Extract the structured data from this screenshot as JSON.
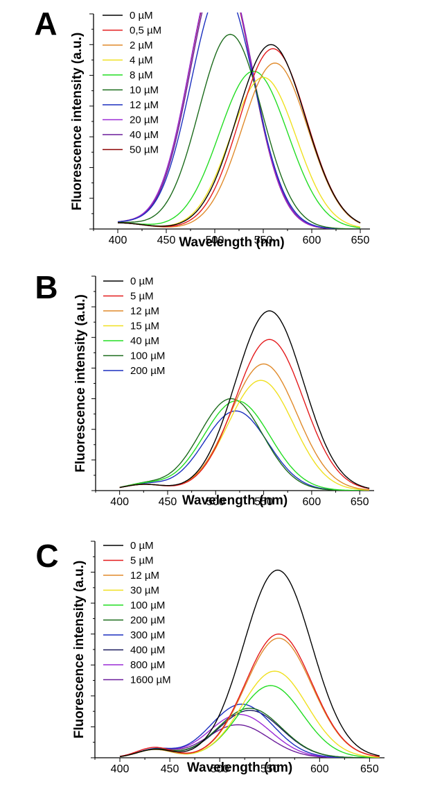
{
  "chart_data": [
    {
      "type": "line",
      "panel": "A",
      "xlabel": "Wavelength (nm)",
      "ylabel": "Fluorescence intensity (a.u.)",
      "xlim": [
        375,
        660
      ],
      "ylim": [
        0,
        105
      ],
      "xticks": [
        400,
        450,
        500,
        550,
        600,
        650
      ],
      "yticks_labeled": false,
      "x_range": [
        400,
        650
      ],
      "legend_position": "top-left",
      "series": [
        {
          "name": "0 µM",
          "color": "#000000",
          "components": [
            {
              "amp": 3,
              "center": 400,
              "width": 40
            },
            {
              "amp": 90,
              "center": 558,
              "width": 50
            }
          ]
        },
        {
          "name": "0,5 µM",
          "color": "#e41a1c",
          "components": [
            {
              "amp": 3,
              "center": 400,
              "width": 40
            },
            {
              "amp": 88,
              "center": 560,
              "width": 49
            }
          ]
        },
        {
          "name": "2 µM",
          "color": "#e08a2a",
          "components": [
            {
              "amp": 3,
              "center": 400,
              "width": 40
            },
            {
              "amp": 81,
              "center": 562,
              "width": 48
            }
          ]
        },
        {
          "name": "4 µM",
          "color": "#f0e020",
          "components": [
            {
              "amp": 3,
              "center": 400,
              "width": 40
            },
            {
              "amp": 74,
              "center": 550,
              "width": 48
            }
          ]
        },
        {
          "name": "8 µM",
          "color": "#22dd22",
          "components": [
            {
              "amp": 3,
              "center": 400,
              "width": 40
            },
            {
              "amp": 77,
              "center": 540,
              "width": 50
            }
          ]
        },
        {
          "name": "10 µM",
          "color": "#1b6b1b",
          "components": [
            {
              "amp": 3,
              "center": 400,
              "width": 40
            },
            {
              "amp": 95,
              "center": 516,
              "width": 46
            }
          ]
        },
        {
          "name": "12 µM",
          "color": "#1a2fbf",
          "components": [
            {
              "amp": 3,
              "center": 400,
              "width": 40
            },
            {
              "amp": 118,
              "center": 508,
              "width": 46
            }
          ]
        },
        {
          "name": "20 µM",
          "color": "#9a2ad6",
          "components": [
            {
              "amp": 3,
              "center": 400,
              "width": 40
            },
            {
              "amp": 131,
              "center": 506,
              "width": 45
            }
          ]
        },
        {
          "name": "40 µM",
          "color": "#6a1b9a",
          "components": [
            {
              "amp": 3,
              "center": 400,
              "width": 40
            },
            {
              "amp": 129,
              "center": 507,
              "width": 45
            }
          ]
        },
        {
          "name": "50 µM",
          "color": "#8b0000",
          "components": [
            {
              "amp": 3,
              "center": 400,
              "width": 40
            },
            {
              "amp": 130,
              "center": 506,
              "width": 45
            }
          ]
        }
      ]
    },
    {
      "type": "line",
      "panel": "B",
      "xlabel": "Wavelength (nm)",
      "ylabel": "Fluorescence intensity (a.u.)",
      "xlim": [
        375,
        665
      ],
      "ylim": [
        0,
        105
      ],
      "xticks": [
        400,
        450,
        500,
        550,
        600,
        650
      ],
      "yticks_labeled": false,
      "x_range": [
        400,
        660
      ],
      "legend_position": "top-left",
      "series": [
        {
          "name": "0 µM",
          "color": "#000000",
          "components": [
            {
              "amp": 3,
              "center": 425,
              "width": 30
            },
            {
              "amp": 88,
              "center": 556,
              "width": 50
            }
          ]
        },
        {
          "name": "5 µM",
          "color": "#e41a1c",
          "components": [
            {
              "amp": 3,
              "center": 425,
              "width": 30
            },
            {
              "amp": 74,
              "center": 556,
              "width": 50
            }
          ]
        },
        {
          "name": "12 µM",
          "color": "#e08a2a",
          "components": [
            {
              "amp": 3,
              "center": 425,
              "width": 30
            },
            {
              "amp": 62,
              "center": 550,
              "width": 49
            }
          ]
        },
        {
          "name": "15 µM",
          "color": "#f0e020",
          "components": [
            {
              "amp": 3,
              "center": 425,
              "width": 30
            },
            {
              "amp": 54,
              "center": 547,
              "width": 48
            }
          ]
        },
        {
          "name": "40 µM",
          "color": "#22dd22",
          "components": [
            {
              "amp": 3,
              "center": 425,
              "width": 30
            },
            {
              "amp": 44,
              "center": 522,
              "width": 49
            }
          ]
        },
        {
          "name": "100 µM",
          "color": "#1b6b1b",
          "components": [
            {
              "amp": 3,
              "center": 425,
              "width": 30
            },
            {
              "amp": 45,
              "center": 516,
              "width": 47
            }
          ]
        },
        {
          "name": "200 µM",
          "color": "#1a2fbf",
          "components": [
            {
              "amp": 3,
              "center": 425,
              "width": 30
            },
            {
              "amp": 39,
              "center": 521,
              "width": 47
            }
          ]
        }
      ]
    },
    {
      "type": "line",
      "panel": "C",
      "xlabel": "Wavelength (nm)",
      "ylabel": "Fluorescence intensity (a.u.)",
      "xlim": [
        375,
        665
      ],
      "ylim": [
        0,
        105
      ],
      "xticks": [
        400,
        450,
        500,
        550,
        600,
        650
      ],
      "yticks_labeled": false,
      "x_range": [
        400,
        660
      ],
      "legend_position": "top-left",
      "series": [
        {
          "name": "0 µM",
          "color": "#000000",
          "components": [
            {
              "amp": 4,
              "center": 435,
              "width": 25
            },
            {
              "amp": 91,
              "center": 558,
              "width": 48
            }
          ]
        },
        {
          "name": "5 µM",
          "color": "#e41a1c",
          "components": [
            {
              "amp": 5,
              "center": 435,
              "width": 25
            },
            {
              "amp": 60,
              "center": 559,
              "width": 47
            }
          ]
        },
        {
          "name": "12 µM",
          "color": "#e08a2a",
          "components": [
            {
              "amp": 4,
              "center": 435,
              "width": 25
            },
            {
              "amp": 58,
              "center": 559,
              "width": 47
            }
          ]
        },
        {
          "name": "30 µM",
          "color": "#f0e020",
          "components": [
            {
              "amp": 4,
              "center": 435,
              "width": 25
            },
            {
              "amp": 42,
              "center": 555,
              "width": 46
            }
          ]
        },
        {
          "name": "100 µM",
          "color": "#22dd22",
          "components": [
            {
              "amp": 4,
              "center": 435,
              "width": 25
            },
            {
              "amp": 35,
              "center": 551,
              "width": 45
            }
          ]
        },
        {
          "name": "200 µM",
          "color": "#1b6b1b",
          "components": [
            {
              "amp": 4,
              "center": 435,
              "width": 25
            },
            {
              "amp": 24,
              "center": 530,
              "width": 45
            }
          ]
        },
        {
          "name": "300 µM",
          "color": "#1a2fbf",
          "components": [
            {
              "amp": 4,
              "center": 435,
              "width": 25
            },
            {
              "amp": 26,
              "center": 522,
              "width": 44
            }
          ]
        },
        {
          "name": "400 µM",
          "color": "#1a1a5e",
          "components": [
            {
              "amp": 4,
              "center": 435,
              "width": 25
            },
            {
              "amp": 23,
              "center": 530,
              "width": 45
            }
          ]
        },
        {
          "name": "800 µM",
          "color": "#9a2ad6",
          "components": [
            {
              "amp": 4,
              "center": 435,
              "width": 25
            },
            {
              "amp": 21,
              "center": 520,
              "width": 44
            }
          ]
        },
        {
          "name": "1600 µM",
          "color": "#6a1b9a",
          "components": [
            {
              "amp": 4,
              "center": 435,
              "width": 25
            },
            {
              "amp": 16,
              "center": 518,
              "width": 44
            }
          ]
        }
      ]
    }
  ]
}
